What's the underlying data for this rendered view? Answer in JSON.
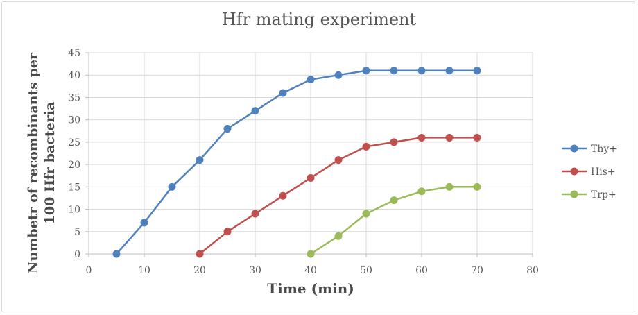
{
  "chart_data": {
    "type": "line",
    "title": "Hfr mating  experiment",
    "xlabel": "Time (min)",
    "ylabel": "Numbetr of recombinants per 100 Hfr bacteria",
    "xlim": [
      0,
      80
    ],
    "ylim": [
      0,
      45
    ],
    "xticks": [
      "0",
      "10",
      "20",
      "30",
      "40",
      "50",
      "60",
      "70",
      "80"
    ],
    "yticks": [
      "0",
      "5",
      "10",
      "15",
      "20",
      "25",
      "30",
      "35",
      "40",
      "45"
    ],
    "grid": true,
    "legend_position": "right",
    "series": [
      {
        "name": "Thy+",
        "color": "#4f81bd",
        "x": [
          5,
          10,
          15,
          20,
          25,
          30,
          35,
          40,
          45,
          50,
          55,
          60,
          65,
          70
        ],
        "y": [
          0,
          7,
          15,
          21,
          28,
          32,
          36,
          39,
          40,
          41,
          41,
          41,
          41,
          41
        ]
      },
      {
        "name": "His+",
        "color": "#c0504d",
        "x": [
          20,
          25,
          30,
          35,
          40,
          45,
          50,
          55,
          60,
          65,
          70
        ],
        "y": [
          0,
          5,
          9,
          13,
          17,
          21,
          24,
          25,
          26,
          26,
          26
        ]
      },
      {
        "name": "Trp+",
        "color": "#9bbb59",
        "x": [
          40,
          45,
          50,
          55,
          60,
          65,
          70
        ],
        "y": [
          0,
          4,
          9,
          12,
          14,
          15,
          15
        ]
      }
    ]
  }
}
